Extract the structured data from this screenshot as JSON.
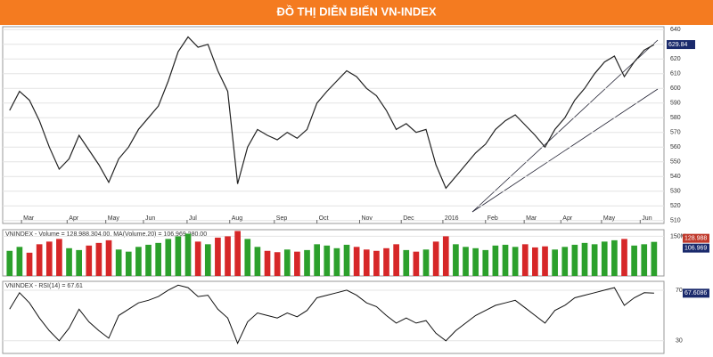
{
  "header": {
    "title": "ĐỒ THỊ DIỄN BIẾN VN-INDEX"
  },
  "chart_data": [
    {
      "type": "line",
      "x": [
        0,
        1,
        2,
        3,
        4,
        5,
        6,
        7,
        8,
        9,
        10,
        11,
        12,
        13,
        14,
        15,
        16,
        17,
        18,
        19,
        20,
        21,
        22,
        23,
        24,
        25,
        26,
        27,
        28,
        29,
        30,
        31,
        32,
        33,
        34,
        35,
        36,
        37,
        38,
        39,
        40,
        41,
        42,
        43,
        44,
        45,
        46,
        47,
        48,
        49,
        50,
        51,
        52,
        53,
        54,
        55,
        56,
        57,
        58,
        59,
        60,
        61,
        62,
        63,
        64,
        65
      ],
      "series": [
        {
          "name": "VNINDEX",
          "color": "#222222",
          "values": [
            585,
            598,
            592,
            578,
            560,
            545,
            552,
            568,
            558,
            548,
            536,
            552,
            560,
            572,
            580,
            588,
            605,
            625,
            635,
            628,
            630,
            612,
            598,
            535,
            560,
            572,
            568,
            565,
            570,
            566,
            572,
            590,
            598,
            605,
            612,
            608,
            600,
            595,
            585,
            572,
            576,
            570,
            572,
            548,
            532,
            540,
            548,
            556,
            562,
            572,
            578,
            582,
            575,
            568,
            560,
            572,
            580,
            592,
            600,
            610,
            618,
            622,
            608,
            618,
            626,
            629.84
          ]
        }
      ],
      "last_label": "629.84",
      "xlim": [
        -0.7,
        66
      ],
      "xticks": [
        {
          "value": 1.2,
          "label": "Mar"
        },
        {
          "value": 5.8,
          "label": "Apr"
        },
        {
          "value": 9.7,
          "label": "May"
        },
        {
          "value": 13.5,
          "label": "Jun"
        },
        {
          "value": 17.9,
          "label": "Jul"
        },
        {
          "value": 22.2,
          "label": "Aug"
        },
        {
          "value": 26.7,
          "label": "Sep"
        },
        {
          "value": 31,
          "label": "Oct"
        },
        {
          "value": 35.3,
          "label": "Nov"
        },
        {
          "value": 39.5,
          "label": "Dec"
        },
        {
          "value": 43.7,
          "label": "2016"
        },
        {
          "value": 48,
          "label": "Feb"
        },
        {
          "value": 51.9,
          "label": "Mar"
        },
        {
          "value": 55.6,
          "label": "Apr"
        },
        {
          "value": 59.7,
          "label": "May"
        },
        {
          "value": 63.6,
          "label": "Jun"
        }
      ],
      "ylim": [
        508,
        642
      ],
      "yticks": [
        510,
        520,
        530,
        540,
        550,
        560,
        570,
        580,
        590,
        600,
        610,
        620,
        630,
        640
      ],
      "grid": true
    },
    {
      "type": "bar",
      "title": "VNINDEX - Volume = 128,988,304.00, MA(Volume,20) = 106,969,280.00",
      "values": [
        95,
        110,
        88,
        120,
        130,
        140,
        105,
        98,
        115,
        125,
        135,
        100,
        92,
        110,
        118,
        125,
        140,
        150,
        160,
        130,
        120,
        145,
        150,
        170,
        140,
        110,
        95,
        90,
        100,
        92,
        98,
        120,
        115,
        105,
        118,
        110,
        100,
        95,
        105,
        120,
        98,
        92,
        100,
        130,
        150,
        120,
        110,
        105,
        98,
        115,
        118,
        110,
        120,
        108,
        112,
        100,
        110,
        118,
        125,
        120,
        130,
        135,
        140,
        115,
        120,
        128.99
      ],
      "ma_label": "106.969",
      "value_label": "128.988",
      "up_color": "#2ca02c",
      "down_color": "#d62728",
      "ylim": [
        0,
        175
      ],
      "yticks": [
        {
          "value": 150,
          "label": "150M"
        }
      ]
    },
    {
      "type": "line",
      "title": "VNINDEX - RSI(14) = 67.61",
      "series": [
        {
          "name": "RSI(14)",
          "color": "#111111",
          "values": [
            55,
            68,
            60,
            48,
            38,
            30,
            40,
            55,
            45,
            38,
            32,
            50,
            55,
            60,
            62,
            65,
            70,
            74,
            72,
            65,
            66,
            55,
            48,
            28,
            45,
            52,
            50,
            48,
            52,
            49,
            54,
            64,
            66,
            68,
            70,
            66,
            60,
            57,
            50,
            44,
            48,
            44,
            46,
            36,
            30,
            38,
            44,
            50,
            54,
            58,
            60,
            62,
            56,
            50,
            44,
            54,
            58,
            64,
            66,
            68,
            70,
            72,
            58,
            64,
            68,
            67.61
          ]
        }
      ],
      "value_label": "67.6086",
      "ylim": [
        20,
        77
      ],
      "yticks": [
        30,
        70
      ]
    }
  ]
}
